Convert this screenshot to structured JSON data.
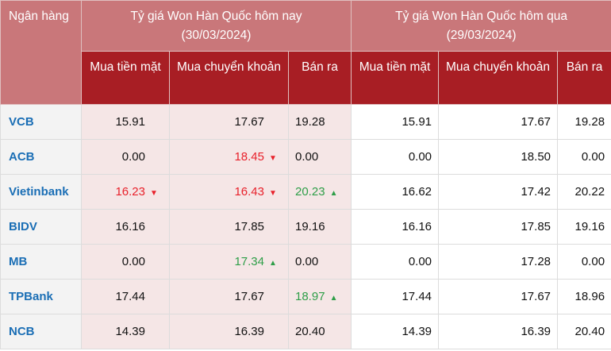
{
  "header": {
    "bank": "Ngân hàng",
    "today_title": "Tỷ giá Won Hàn Quốc hôm nay",
    "today_date": "(30/03/2024)",
    "yesterday_title": "Tỷ giá Won Hàn Quốc hôm qua",
    "yesterday_date": "(29/03/2024)",
    "cols": [
      "Mua tiền mặt",
      "Mua chuyển khoản",
      "Bán ra",
      "Mua tiền mặt",
      "Mua chuyển khoản",
      "Bán ra"
    ]
  },
  "colors": {
    "up": "#2e9e48",
    "down": "#e8212b",
    "header_light": "#c9777a",
    "header_dark": "#a81e24",
    "bank": "#1a6eb5"
  },
  "rows": [
    {
      "bank": "VCB",
      "today": [
        {
          "v": "15.91",
          "t": ""
        },
        {
          "v": "17.67",
          "t": ""
        },
        {
          "v": "19.28",
          "t": ""
        }
      ],
      "yesterday": [
        "15.91",
        "17.67",
        "19.28"
      ]
    },
    {
      "bank": "ACB",
      "today": [
        {
          "v": "0.00",
          "t": ""
        },
        {
          "v": "18.45",
          "t": "down"
        },
        {
          "v": "0.00",
          "t": ""
        }
      ],
      "yesterday": [
        "0.00",
        "18.50",
        "0.00"
      ]
    },
    {
      "bank": "Vietinbank",
      "today": [
        {
          "v": "16.23",
          "t": "down"
        },
        {
          "v": "16.43",
          "t": "down"
        },
        {
          "v": "20.23",
          "t": "up"
        }
      ],
      "yesterday": [
        "16.62",
        "17.42",
        "20.22"
      ]
    },
    {
      "bank": "BIDV",
      "today": [
        {
          "v": "16.16",
          "t": ""
        },
        {
          "v": "17.85",
          "t": ""
        },
        {
          "v": "19.16",
          "t": ""
        }
      ],
      "yesterday": [
        "16.16",
        "17.85",
        "19.16"
      ]
    },
    {
      "bank": "MB",
      "today": [
        {
          "v": "0.00",
          "t": ""
        },
        {
          "v": "17.34",
          "t": "up"
        },
        {
          "v": "0.00",
          "t": ""
        }
      ],
      "yesterday": [
        "0.00",
        "17.28",
        "0.00"
      ]
    },
    {
      "bank": "TPBank",
      "today": [
        {
          "v": "17.44",
          "t": ""
        },
        {
          "v": "17.67",
          "t": ""
        },
        {
          "v": "18.97",
          "t": "up"
        }
      ],
      "yesterday": [
        "17.44",
        "17.67",
        "18.96"
      ]
    },
    {
      "bank": "NCB",
      "today": [
        {
          "v": "14.39",
          "t": ""
        },
        {
          "v": "16.39",
          "t": ""
        },
        {
          "v": "20.40",
          "t": ""
        }
      ],
      "yesterday": [
        "14.39",
        "16.39",
        "20.40"
      ]
    }
  ]
}
